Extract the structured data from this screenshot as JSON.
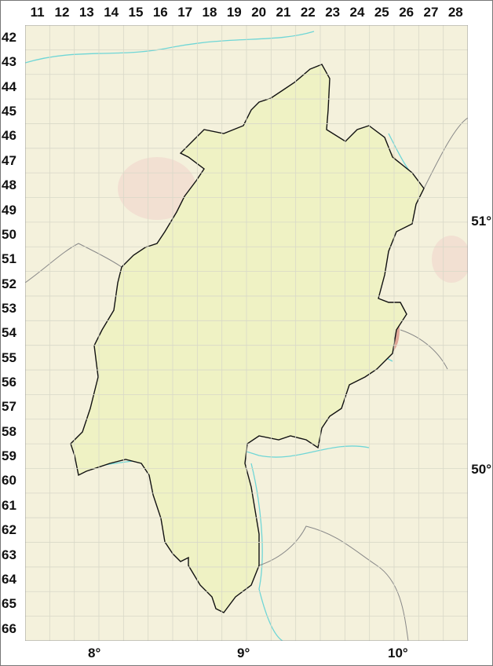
{
  "grid": {
    "columns": [
      "11",
      "12",
      "13",
      "14",
      "15",
      "16",
      "17",
      "18",
      "19",
      "20",
      "21",
      "22",
      "23",
      "24",
      "25",
      "26",
      "27",
      "28"
    ],
    "rows": [
      "42",
      "43",
      "44",
      "45",
      "46",
      "47",
      "48",
      "49",
      "50",
      "51",
      "52",
      "53",
      "54",
      "55",
      "56",
      "57",
      "58",
      "59",
      "60",
      "61",
      "62",
      "63",
      "64",
      "65",
      "66"
    ]
  },
  "latitude_labels": [
    "51°",
    "50°"
  ],
  "longitude_labels": [
    "8°",
    "9°",
    "10°"
  ],
  "colors": {
    "background": "#f4f1dc",
    "region_fill": "#eff2c4",
    "highland": "#d9c79a",
    "peaks": "#e0a898",
    "rivers": "#6fd6d6",
    "border": "#111111",
    "grid": "#d8d8c8"
  }
}
